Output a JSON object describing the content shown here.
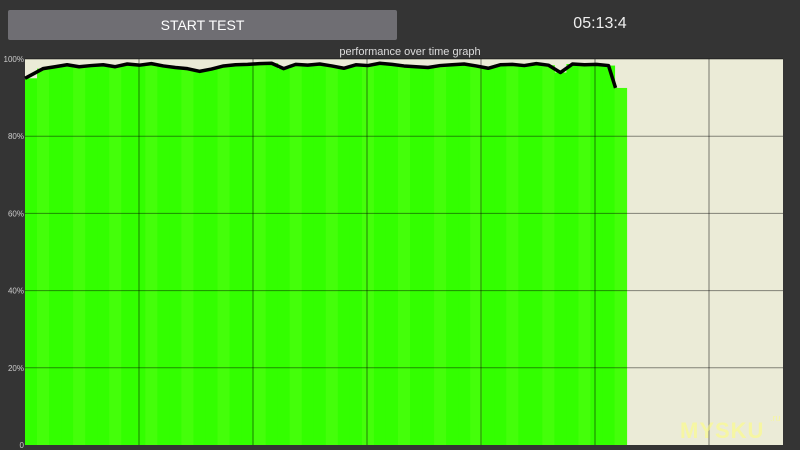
{
  "toolbar": {
    "start_label": "START TEST",
    "timer": "05:13:4"
  },
  "chart_data": {
    "type": "area",
    "title": "performance over time graph",
    "xlabel": "",
    "ylabel": "",
    "ylim": [
      0,
      100
    ],
    "xlim": [
      0,
      63
    ],
    "yticks": [
      "0",
      "20%",
      "40%",
      "60%",
      "80%",
      "100%"
    ],
    "grid": true,
    "fill_color": "#33ff00",
    "line_color": "#000000",
    "background_color": "#ebebd7",
    "values": [
      95,
      97.5,
      98,
      98.5,
      98,
      98.3,
      98.5,
      98,
      98.7,
      98.4,
      98.8,
      98.2,
      97.8,
      97.5,
      96.8,
      97.4,
      98.2,
      98.5,
      98.6,
      98.8,
      98.9,
      97.5,
      98.6,
      98.4,
      98.7,
      98.2,
      97.6,
      98.5,
      98.3,
      98.9,
      98.6,
      98.2,
      98,
      97.8,
      98.3,
      98.5,
      98.7,
      98.2,
      97.6,
      98.5,
      98.6,
      98.3,
      98.8,
      98.4,
      96.5,
      98.7,
      98.5,
      98.6,
      98.3,
      92.5
    ]
  },
  "watermark": {
    "text": "MYSKU",
    "suffix": ".ru"
  }
}
